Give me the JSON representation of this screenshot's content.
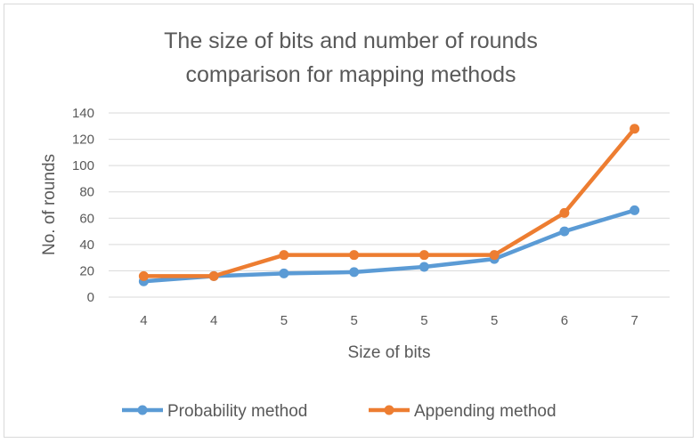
{
  "chart_data": {
    "type": "line",
    "title_lines": [
      "The size of bits and number of rounds",
      "comparison for mapping methods"
    ],
    "xlabel": "Size of bits",
    "ylabel": "No. of rounds",
    "categories": [
      "4",
      "4",
      "5",
      "5",
      "5",
      "5",
      "6",
      "7"
    ],
    "yticks": [
      "0",
      "20",
      "40",
      "60",
      "80",
      "100",
      "120",
      "140"
    ],
    "ylim": [
      0,
      140
    ],
    "grid": true,
    "legend_position": "bottom",
    "series": [
      {
        "name": "Probability method",
        "color": "#5b9bd5",
        "values": [
          12,
          16,
          18,
          19,
          23,
          29,
          50,
          66
        ]
      },
      {
        "name": "Appending method",
        "color": "#ed7d31",
        "values": [
          16,
          16,
          32,
          32,
          32,
          32,
          64,
          128
        ]
      }
    ]
  }
}
